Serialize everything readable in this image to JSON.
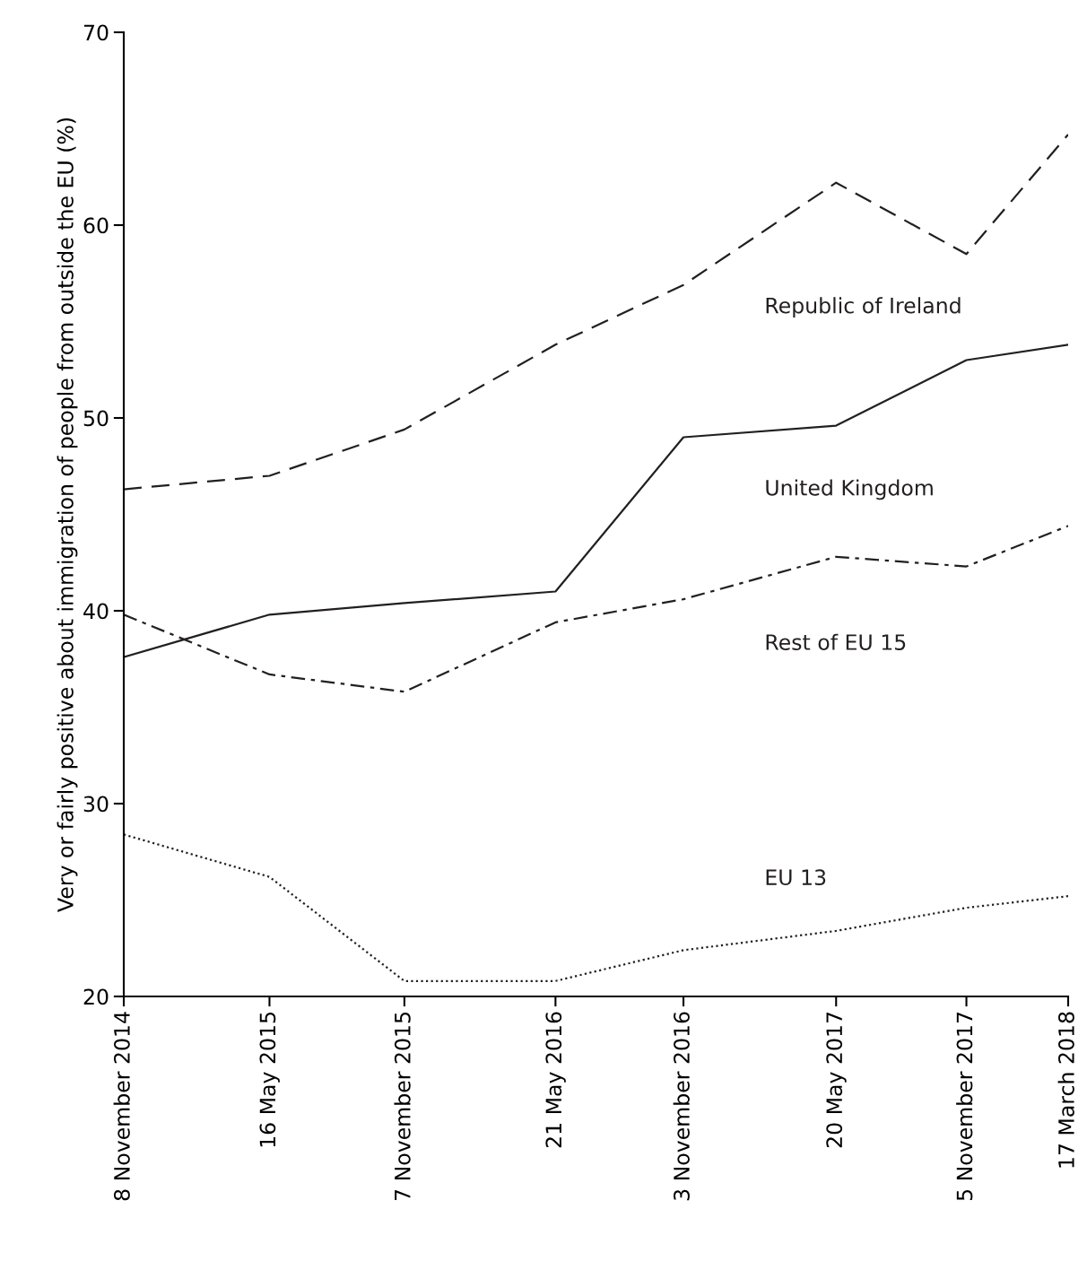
{
  "chart_data": {
    "type": "line",
    "ylabel": "Very or fairly positive about immigration of people from outside the EU (%)",
    "x": [
      "2014-11-08",
      "2015-05-16",
      "2015-11-07",
      "2016-05-21",
      "2016-11-03",
      "2017-05-20",
      "2017-11-05",
      "2018-03-17"
    ],
    "series": [
      {
        "name": "Republic of Ireland",
        "color": "#231f20",
        "line_style": "dashed",
        "values": [
          46.3,
          47.0,
          49.4,
          53.8,
          56.9,
          62.2,
          58.5,
          64.7
        ]
      },
      {
        "name": "United Kingdom",
        "color": "#231f20",
        "line_style": "solid",
        "values": [
          37.6,
          39.8,
          40.4,
          41.0,
          49.0,
          49.6,
          53.0,
          53.8
        ]
      },
      {
        "name": "Rest of EU 15",
        "color": "#231f20",
        "line_style": "dashdot",
        "values": [
          39.8,
          36.7,
          35.8,
          39.4,
          40.6,
          42.8,
          42.3,
          44.4
        ]
      },
      {
        "name": "EU 13",
        "color": "#231f20",
        "line_style": "dotted",
        "values": [
          28.4,
          26.2,
          20.8,
          20.8,
          22.4,
          23.4,
          24.6,
          25.2
        ]
      }
    ],
    "xlim": [
      "2014-11-08",
      "2018-03-17"
    ],
    "xticks": [
      {
        "value": "2014-11-08",
        "label": "8 November 2014"
      },
      {
        "value": "2015-05-16",
        "label": "16 May 2015"
      },
      {
        "value": "2015-11-07",
        "label": "7 November 2015"
      },
      {
        "value": "2016-05-21",
        "label": "21 May 2016"
      },
      {
        "value": "2016-11-03",
        "label": "3 November 2016"
      },
      {
        "value": "2017-05-20",
        "label": "20 May 2017"
      },
      {
        "value": "2017-11-05",
        "label": "5 November 2017"
      },
      {
        "value": "2018-03-17",
        "label": "17 March 2018"
      }
    ],
    "ylim": [
      20,
      70
    ],
    "yticks": [
      20,
      30,
      40,
      50,
      60,
      70
    ],
    "grid": false,
    "legend": false,
    "marker": "none"
  }
}
